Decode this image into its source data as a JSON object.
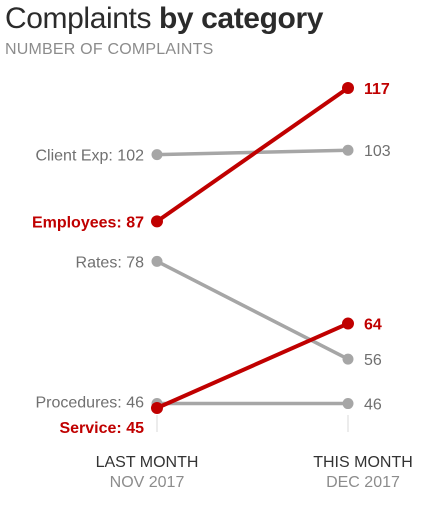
{
  "title": {
    "part1": "Complaints ",
    "part2": "by category"
  },
  "subtitle": "NUMBER OF COMPLAINTS",
  "colors": {
    "highlight": "#c00000",
    "muted": "#a6a6a6",
    "label_muted": "#707070",
    "axis_text": "#333333"
  },
  "chart_data": {
    "type": "line",
    "chart_variant": "slope",
    "x": [
      "LAST MONTH",
      "THIS MONTH"
    ],
    "x_sublabels": [
      "NOV 2017",
      "DEC 2017"
    ],
    "series": [
      {
        "name": "Client Exp",
        "start_label": "Client Exp: 102",
        "end_label": "103",
        "values": [
          102,
          103
        ],
        "highlight": false
      },
      {
        "name": "Employees",
        "start_label": "Employees: 87",
        "end_label": "117",
        "values": [
          87,
          117
        ],
        "highlight": true
      },
      {
        "name": "Rates",
        "start_label": "Rates: 78",
        "end_label": "56",
        "values": [
          78,
          56
        ],
        "highlight": false
      },
      {
        "name": "Procedures",
        "start_label": "Procedures: 46",
        "end_label": "46",
        "values": [
          46,
          46
        ],
        "highlight": false
      },
      {
        "name": "Service",
        "start_label": "Service: 45",
        "end_label": "64",
        "values": [
          45,
          64
        ],
        "highlight": true
      }
    ],
    "ylim": [
      44,
      119
    ],
    "grid": false,
    "legend": "none"
  }
}
